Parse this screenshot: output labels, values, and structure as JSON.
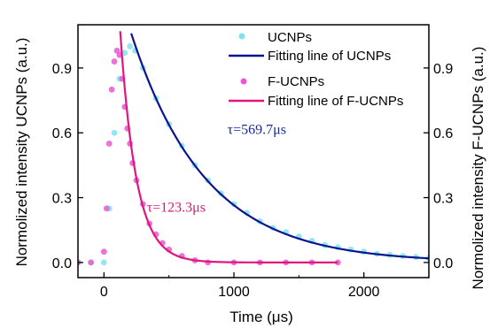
{
  "chart_data": {
    "type": "scatter",
    "xlabel": "Time (μs)",
    "ylabel_left": "Normolized intensity UCNPs (a.u.)",
    "ylabel_right": "Normolized intensity F-UCNPs (a.u.)",
    "xlim": [
      -200,
      2500
    ],
    "ylim": [
      -0.07,
      1.1
    ],
    "x_ticks": [
      0,
      1000,
      2000
    ],
    "x_tick_labels": [
      "0",
      "1000",
      "2000"
    ],
    "y_ticks": [
      0.0,
      0.3,
      0.6,
      0.9
    ],
    "y_tick_labels": [
      "0.0",
      "0.3",
      "0.6",
      "0.9"
    ],
    "grid": false,
    "legend_position": "top-right",
    "legend": [
      {
        "label": "UCNPs",
        "kind": "marker"
      },
      {
        "label": "Fitting line of UCNPs",
        "kind": "line"
      },
      {
        "label": "F-UCNPs",
        "kind": "marker"
      },
      {
        "label": "Fitting line of F-UCNPs",
        "kind": "line"
      }
    ],
    "series": [
      {
        "name": "UCNPs",
        "kind": "scatter",
        "color": "#7fe3ef",
        "x": [
          -200,
          -100,
          0,
          40,
          80,
          120,
          160,
          200,
          240,
          300,
          400,
          500,
          600,
          700,
          800,
          900,
          1000,
          1100,
          1200,
          1300,
          1400,
          1500,
          1600,
          1700,
          1800,
          1900,
          2000,
          2100,
          2200,
          2300,
          2400,
          2500
        ],
        "y": [
          0.0,
          0.0,
          0.0,
          0.25,
          0.6,
          0.85,
          0.97,
          1.0,
          0.98,
          0.9,
          0.76,
          0.64,
          0.54,
          0.45,
          0.38,
          0.32,
          0.27,
          0.23,
          0.19,
          0.16,
          0.14,
          0.12,
          0.1,
          0.08,
          0.07,
          0.06,
          0.05,
          0.04,
          0.035,
          0.03,
          0.025,
          0.02
        ]
      },
      {
        "name": "Fitting line of UCNPs",
        "kind": "fit",
        "color": "#0a148f",
        "tau": 569.7,
        "t0": 210,
        "amplitude": 1.06,
        "x_start": 210,
        "x_end": 2500
      },
      {
        "name": "F-UCNPs",
        "kind": "scatter",
        "color": "#e85ad0",
        "x": [
          -200,
          -100,
          0,
          20,
          40,
          60,
          80,
          100,
          120,
          140,
          160,
          180,
          200,
          220,
          250,
          300,
          350,
          400,
          450,
          500,
          600,
          700,
          800,
          1000,
          1200,
          1400,
          1600,
          1800
        ],
        "y": [
          0.0,
          0.0,
          0.05,
          0.25,
          0.55,
          0.8,
          0.93,
          0.98,
          0.96,
          0.85,
          0.72,
          0.62,
          0.55,
          0.46,
          0.38,
          0.27,
          0.18,
          0.13,
          0.09,
          0.06,
          0.03,
          0.01,
          0.0,
          0.0,
          0.0,
          0.0,
          0.0,
          0.0
        ]
      },
      {
        "name": "Fitting line of F-UCNPs",
        "kind": "fit",
        "color": "#e0167f",
        "tau": 123.3,
        "t0": 125,
        "amplitude": 1.07,
        "x_start": 125,
        "x_end": 1800
      }
    ],
    "annotations": [
      {
        "text": "τ=569.7μs",
        "x": 950,
        "y": 0.62,
        "color": "#1a2a9a"
      },
      {
        "text": "τ=123.3μs",
        "x": 330,
        "y": 0.26,
        "color": "#d81b7a"
      }
    ]
  }
}
